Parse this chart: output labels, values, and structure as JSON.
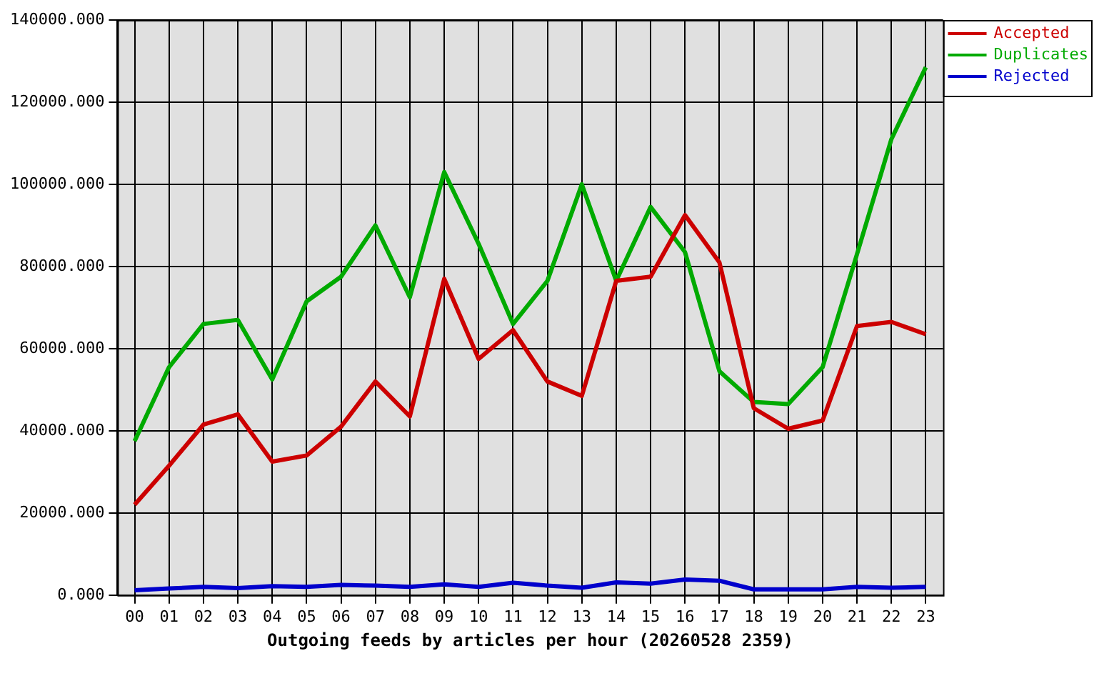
{
  "chart_data": {
    "type": "line",
    "xlabel": "Outgoing feeds by articles per hour (20260528 2359)",
    "categories": [
      "00",
      "01",
      "02",
      "03",
      "04",
      "05",
      "06",
      "07",
      "08",
      "09",
      "10",
      "11",
      "12",
      "13",
      "14",
      "15",
      "16",
      "17",
      "18",
      "19",
      "20",
      "21",
      "22",
      "23"
    ],
    "series": [
      {
        "name": "Accepted",
        "color": "#cc0000",
        "values": [
          22000,
          31500,
          41500,
          44000,
          32500,
          34000,
          41000,
          52000,
          43500,
          77000,
          57500,
          64500,
          52000,
          48500,
          76500,
          77500,
          92500,
          81000,
          45500,
          40500,
          42500,
          65500,
          66500,
          63500
        ]
      },
      {
        "name": "Duplicates",
        "color": "#00aa00",
        "values": [
          37500,
          55500,
          66000,
          67000,
          52500,
          71500,
          77500,
          90000,
          72500,
          103000,
          85500,
          66000,
          76500,
          100000,
          76500,
          94500,
          83500,
          54500,
          47000,
          46500,
          55500,
          83000,
          111000,
          128500
        ]
      },
      {
        "name": "Rejected",
        "color": "#0000cc",
        "values": [
          1200,
          1600,
          2000,
          1700,
          2200,
          2000,
          2500,
          2300,
          2000,
          2600,
          2000,
          3000,
          2300,
          1800,
          3100,
          2800,
          3800,
          3500,
          1400,
          1400,
          1400,
          2000,
          1800,
          2000
        ]
      }
    ],
    "ylim": [
      0,
      140000
    ],
    "yticks": [
      {
        "value": 0,
        "label": "0.000"
      },
      {
        "value": 20000,
        "label": "20000.000"
      },
      {
        "value": 40000,
        "label": "40000.000"
      },
      {
        "value": 60000,
        "label": "60000.000"
      },
      {
        "value": 80000,
        "label": "80000.000"
      },
      {
        "value": 100000,
        "label": "100000.000"
      },
      {
        "value": 120000,
        "label": "120000.000"
      },
      {
        "value": 140000,
        "label": "140000.000"
      }
    ],
    "grid": true,
    "legend": "top right",
    "marker": "none",
    "line_style": "solid"
  }
}
